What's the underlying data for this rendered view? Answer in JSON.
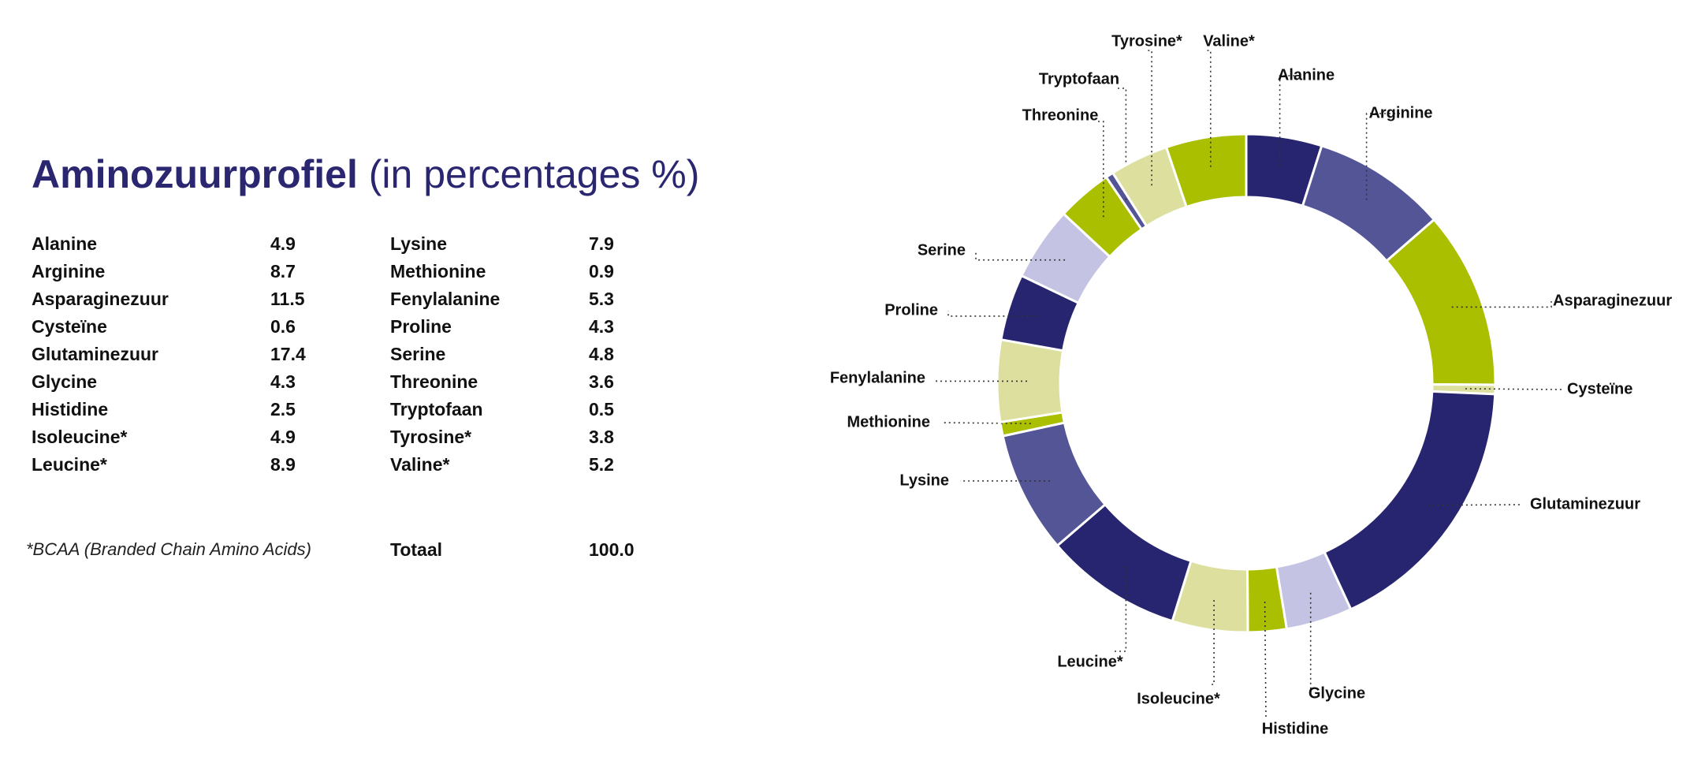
{
  "title": {
    "bold": "Aminozuurprofiel",
    "light": " (in percentages %)"
  },
  "table": {
    "col1": [
      {
        "label": "Alanine",
        "value": "4.9"
      },
      {
        "label": "Arginine",
        "value": "8.7"
      },
      {
        "label": "Asparaginezuur",
        "value": "11.5"
      },
      {
        "label": "Cysteïne",
        "value": "0.6"
      },
      {
        "label": "Glutaminezuur",
        "value": "17.4"
      },
      {
        "label": "Glycine",
        "value": "4.3"
      },
      {
        "label": "Histidine",
        "value": "2.5"
      },
      {
        "label": "Isoleucine*",
        "value": "4.9"
      },
      {
        "label": "Leucine*",
        "value": "8.9"
      }
    ],
    "col2": [
      {
        "label": "Lysine",
        "value": "7.9"
      },
      {
        "label": "Methionine",
        "value": "0.9"
      },
      {
        "label": "Fenylalanine",
        "value": "5.3"
      },
      {
        "label": "Proline",
        "value": "4.3"
      },
      {
        "label": "Serine",
        "value": "4.8"
      },
      {
        "label": "Threonine",
        "value": "3.6"
      },
      {
        "label": "Tryptofaan",
        "value": "0.5"
      },
      {
        "label": "Tyrosine*",
        "value": "3.8"
      },
      {
        "label": "Valine*",
        "value": "5.2"
      }
    ]
  },
  "footnote": "*BCAA (Branded Chain Amino Acids)",
  "total": {
    "label": "Totaal",
    "value": "100.0"
  },
  "colors": {
    "navy": "#27256f",
    "purple": "#545596",
    "lime": "#a9bf00",
    "pale": "#dcdf9e",
    "lavender": "#c5c3e3"
  },
  "chart_data": {
    "type": "pie",
    "subtype": "donut",
    "slices": [
      {
        "label": "Alanine",
        "value": 4.9,
        "color": "#27256f"
      },
      {
        "label": "Arginine",
        "value": 8.7,
        "color": "#545596"
      },
      {
        "label": "Asparaginezuur",
        "value": 11.5,
        "color": "#a9bf00"
      },
      {
        "label": "Cysteïne",
        "value": 0.6,
        "color": "#dcdf9e"
      },
      {
        "label": "Glutaminezuur",
        "value": 17.4,
        "color": "#27256f"
      },
      {
        "label": "Glycine",
        "value": 4.3,
        "color": "#c5c3e3"
      },
      {
        "label": "Histidine",
        "value": 2.5,
        "color": "#a9bf00"
      },
      {
        "label": "Isoleucine*",
        "value": 4.9,
        "color": "#dcdf9e"
      },
      {
        "label": "Leucine*",
        "value": 8.9,
        "color": "#27256f"
      },
      {
        "label": "Lysine",
        "value": 7.9,
        "color": "#545596"
      },
      {
        "label": "Methionine",
        "value": 0.9,
        "color": "#a9bf00"
      },
      {
        "label": "Fenylalanine",
        "value": 5.3,
        "color": "#dcdf9e"
      },
      {
        "label": "Proline",
        "value": 4.3,
        "color": "#27256f"
      },
      {
        "label": "Serine",
        "value": 4.8,
        "color": "#c5c3e3"
      },
      {
        "label": "Threonine",
        "value": 3.6,
        "color": "#a9bf00"
      },
      {
        "label": "Tryptofaan",
        "value": 0.5,
        "color": "#545596"
      },
      {
        "label": "Tyrosine*",
        "value": 3.8,
        "color": "#dcdf9e"
      },
      {
        "label": "Valine*",
        "value": 5.2,
        "color": "#a9bf00"
      }
    ]
  }
}
